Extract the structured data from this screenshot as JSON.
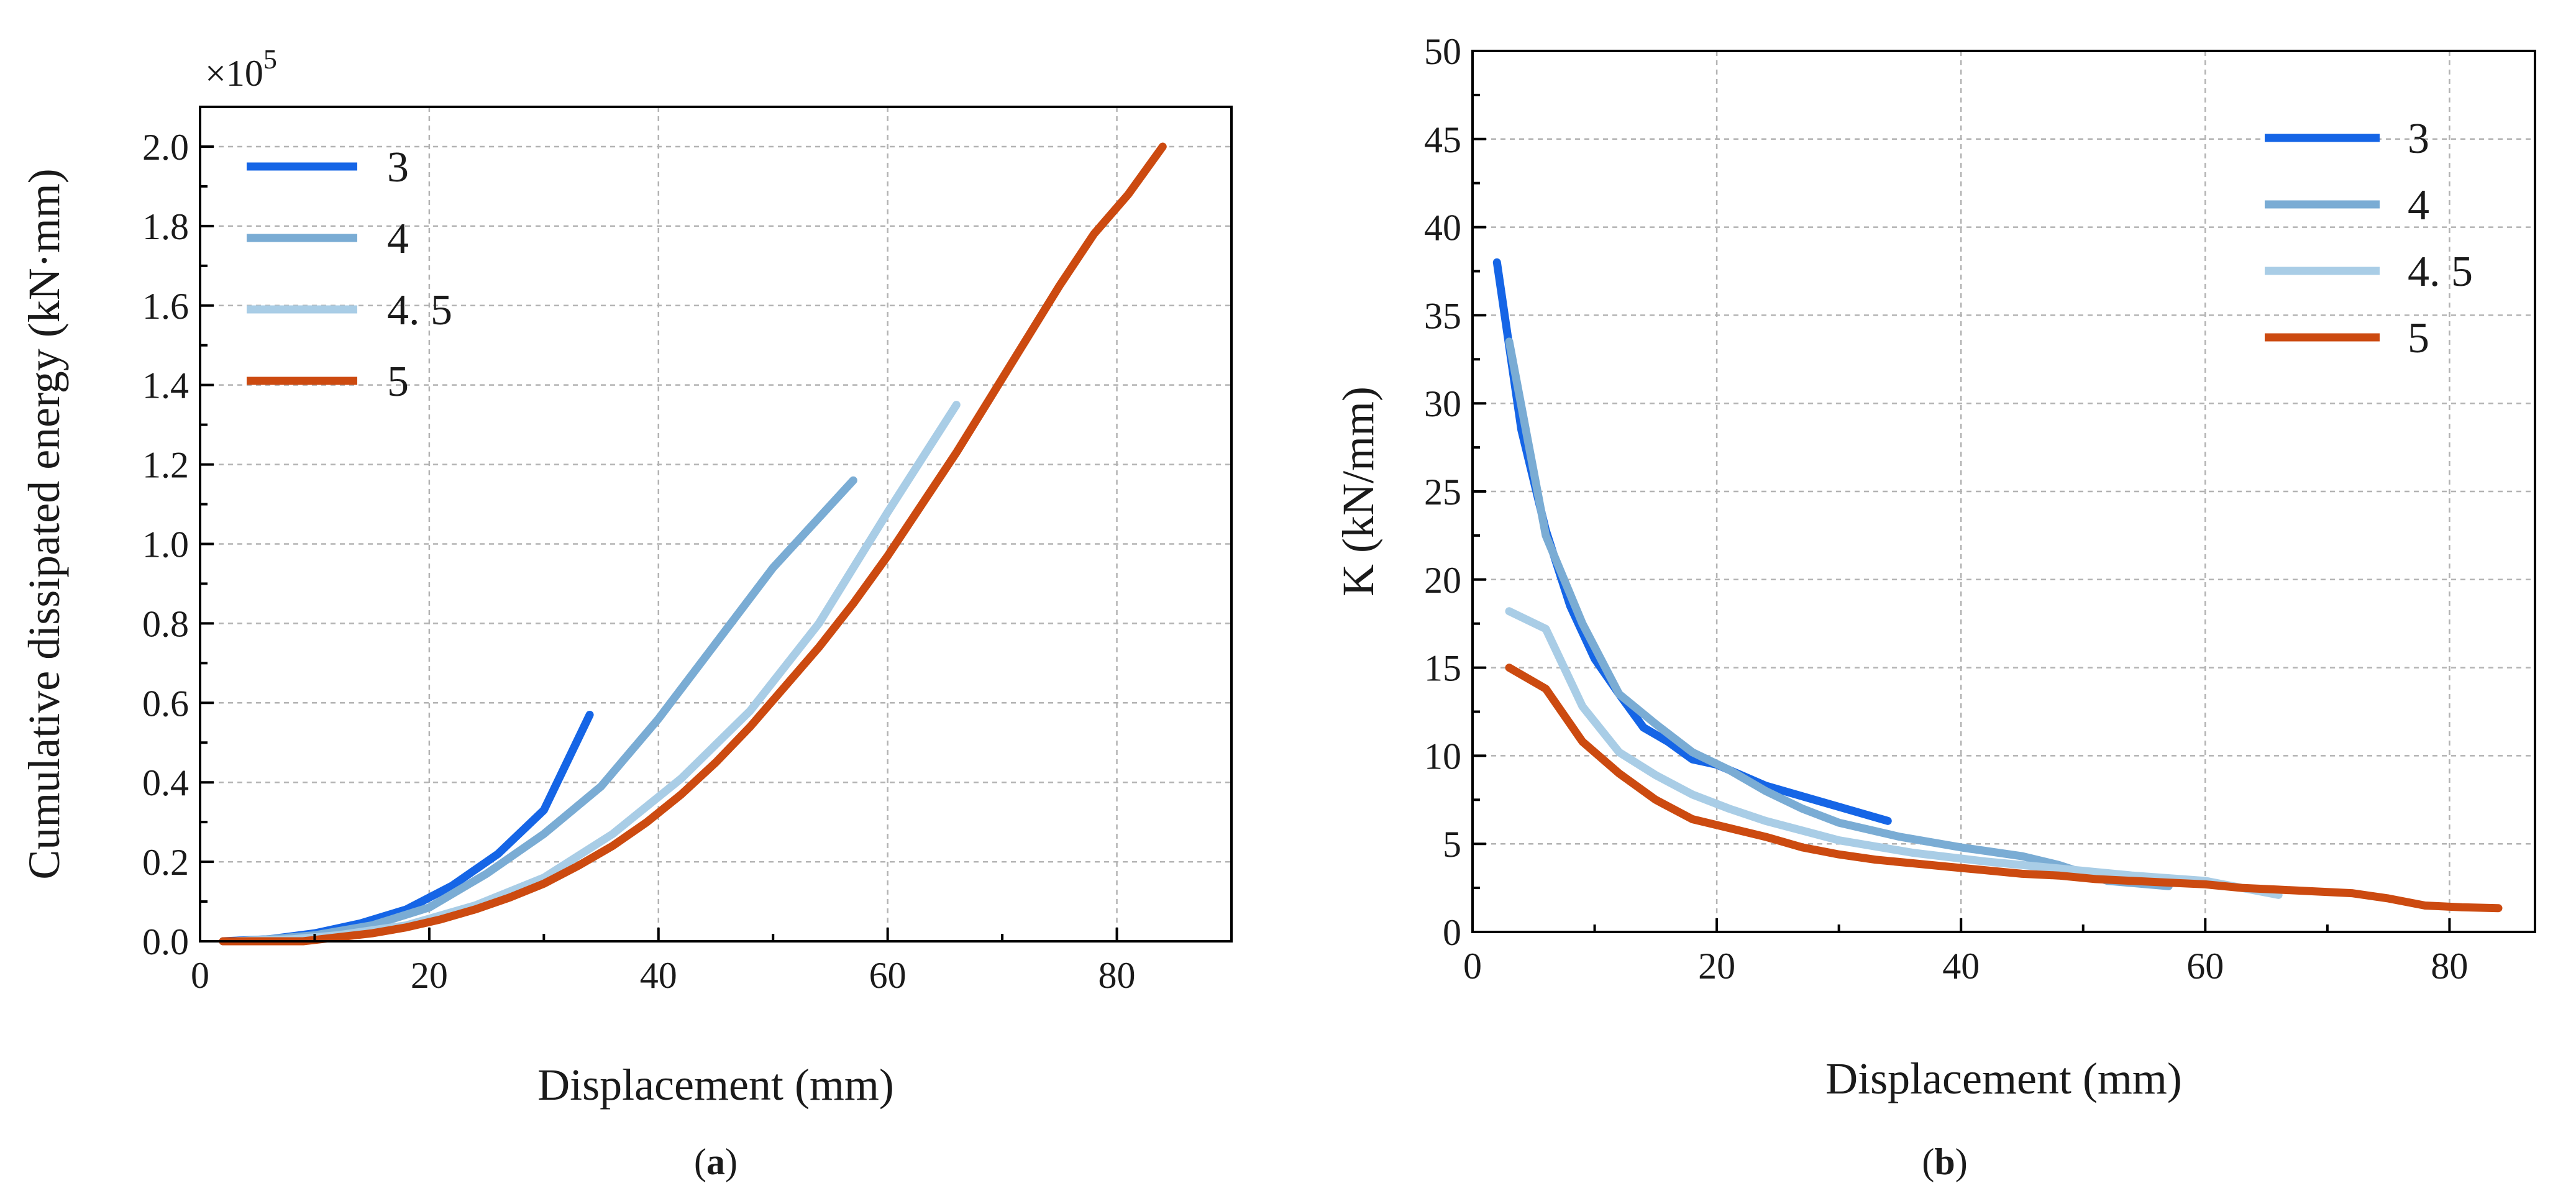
{
  "figure": {
    "colors": {
      "s3": "#1565e6",
      "s4": "#7aacd4",
      "s45": "#a9cde6",
      "s5": "#cc4a10"
    }
  },
  "chart_data": [
    {
      "id": "a",
      "type": "line",
      "caption_open": "(",
      "caption_letter": "a",
      "caption_close": ")",
      "xlabel": "Displacement (mm)",
      "ylabel": "Cumulative dissipated energy (kN·mm)",
      "y_multiplier": "×10",
      "y_multiplier_exp": "5",
      "xlim": [
        0,
        90
      ],
      "ylim": [
        0,
        2.1
      ],
      "xticks": [
        0,
        20,
        40,
        60,
        80
      ],
      "yticks": [
        0.0,
        0.2,
        0.4,
        0.6,
        0.8,
        1.0,
        1.2,
        1.4,
        1.6,
        1.8,
        2.0
      ],
      "xtick_labels": [
        "0",
        "20",
        "40",
        "60",
        "80"
      ],
      "ytick_labels": [
        "0.0",
        "0.2",
        "0.4",
        "0.6",
        "0.8",
        "1.0",
        "1.2",
        "1.4",
        "1.6",
        "1.8",
        "2.0"
      ],
      "grid": true,
      "legend_position": "top-left",
      "series": [
        {
          "name": "3",
          "color": "#1565e6",
          "x": [
            2,
            6,
            10,
            14,
            18,
            22,
            26,
            30,
            34
          ],
          "y": [
            0.0,
            0.005,
            0.02,
            0.045,
            0.08,
            0.14,
            0.22,
            0.33,
            0.57
          ]
        },
        {
          "name": "4",
          "color": "#7aacd4",
          "x": [
            3,
            6,
            10,
            15,
            20,
            25,
            30,
            35,
            40,
            45,
            50,
            57
          ],
          "y": [
            0.0,
            0.005,
            0.015,
            0.04,
            0.085,
            0.17,
            0.27,
            0.39,
            0.56,
            0.75,
            0.94,
            1.16
          ]
        },
        {
          "name": "4. 5",
          "color": "#a9cde6",
          "x": [
            3,
            8,
            12,
            18,
            24,
            30,
            36,
            42,
            48,
            54,
            60,
            66
          ],
          "y": [
            0.0,
            0.005,
            0.015,
            0.04,
            0.09,
            0.16,
            0.27,
            0.41,
            0.58,
            0.8,
            1.08,
            1.35
          ]
        },
        {
          "name": "5",
          "color": "#cc4a10",
          "x": [
            2,
            9,
            12,
            15,
            18,
            21,
            24,
            27,
            30,
            33,
            36,
            39,
            42,
            45,
            48,
            51,
            54,
            57,
            60,
            63,
            66,
            69,
            72,
            75,
            78,
            81,
            84
          ],
          "y": [
            0.0,
            0.0,
            0.01,
            0.02,
            0.035,
            0.055,
            0.08,
            0.11,
            0.145,
            0.19,
            0.24,
            0.3,
            0.37,
            0.45,
            0.54,
            0.64,
            0.74,
            0.85,
            0.97,
            1.1,
            1.23,
            1.37,
            1.51,
            1.65,
            1.78,
            1.88,
            2.0
          ]
        }
      ]
    },
    {
      "id": "b",
      "type": "line",
      "caption_open": "(",
      "caption_letter": "b",
      "caption_close": ")",
      "xlabel": "Displacement (mm)",
      "ylabel": "K (kN/mm)",
      "xlim": [
        0,
        87
      ],
      "ylim": [
        0,
        50
      ],
      "xticks": [
        0,
        20,
        40,
        60,
        80
      ],
      "yticks": [
        0,
        5,
        10,
        15,
        20,
        25,
        30,
        35,
        40,
        45,
        50
      ],
      "xtick_labels": [
        "0",
        "20",
        "40",
        "60",
        "80"
      ],
      "ytick_labels": [
        "0",
        "5",
        "10",
        "15",
        "20",
        "25",
        "30",
        "35",
        "40",
        "45",
        "50"
      ],
      "grid": true,
      "legend_position": "top-right",
      "series": [
        {
          "name": "3",
          "color": "#1565e6",
          "x": [
            2,
            4,
            6,
            8,
            10,
            12,
            14,
            16,
            18,
            20,
            24,
            28,
            34
          ],
          "y": [
            38,
            28.5,
            22.8,
            18.5,
            15.5,
            13.5,
            11.6,
            10.8,
            9.8,
            9.5,
            8.3,
            7.5,
            6.3
          ]
        },
        {
          "name": "4",
          "color": "#7aacd4",
          "x": [
            3,
            6,
            9,
            12,
            15,
            18,
            21,
            24,
            27,
            30,
            35,
            40,
            45,
            48,
            52,
            57
          ],
          "y": [
            33.5,
            22.5,
            17.5,
            13.5,
            11.8,
            10.2,
            9.2,
            8.0,
            7.0,
            6.2,
            5.4,
            4.8,
            4.3,
            3.8,
            2.9,
            2.6
          ]
        },
        {
          "name": "4. 5",
          "color": "#a9cde6",
          "x": [
            3,
            6,
            9,
            12,
            15,
            18,
            21,
            24,
            30,
            36,
            42,
            48,
            54,
            60,
            66
          ],
          "y": [
            18.2,
            17.2,
            12.8,
            10.2,
            8.9,
            7.8,
            7.0,
            6.3,
            5.2,
            4.5,
            4.0,
            3.6,
            3.2,
            2.9,
            2.1
          ]
        },
        {
          "name": "5",
          "color": "#cc4a10",
          "x": [
            3,
            6,
            9,
            12,
            15,
            18,
            21,
            24,
            27,
            30,
            33,
            36,
            39,
            42,
            45,
            48,
            51,
            54,
            57,
            60,
            63,
            66,
            69,
            72,
            75,
            78,
            81,
            84
          ],
          "y": [
            15,
            13.8,
            10.8,
            9.0,
            7.5,
            6.4,
            5.9,
            5.4,
            4.8,
            4.4,
            4.1,
            3.9,
            3.7,
            3.5,
            3.3,
            3.2,
            3.0,
            2.9,
            2.8,
            2.7,
            2.5,
            2.4,
            2.3,
            2.2,
            1.9,
            1.5,
            1.4,
            1.35
          ]
        }
      ]
    }
  ]
}
